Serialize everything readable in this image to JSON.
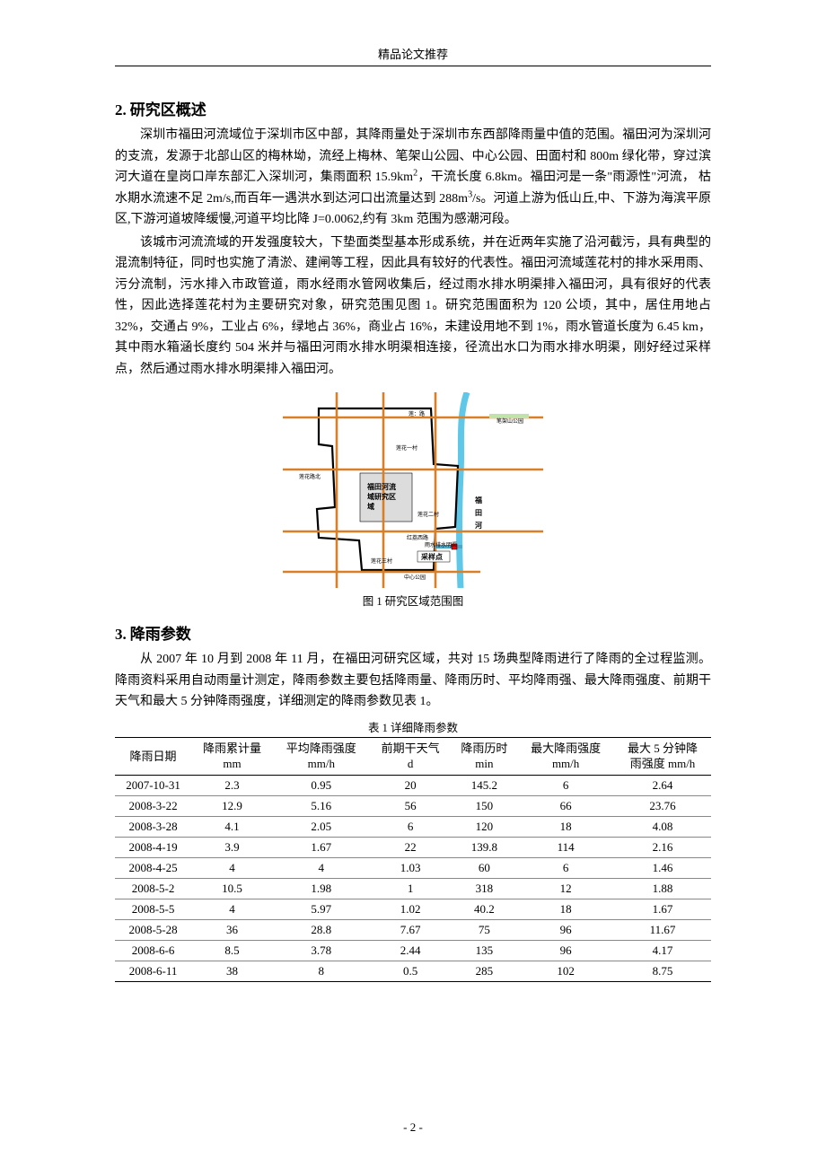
{
  "header": "精品论文推荐",
  "section2": {
    "num": "2.",
    "title": "研究区概述"
  },
  "para1a": "深圳市福田河流域位于深圳市区中部，其降雨量处于深圳市东西部降雨量中值的范围。",
  "para1b": "福田河为深圳河的支流，发源于北部山区的梅林坳，流经上梅林、笔架山公园、中心公园、田面村和 800m 绿化带，穿过滨河大道在皇岗口岸东部汇入深圳河，集雨面积 15.9km",
  "para1c": "，干流长度 6.8km。福田河是一条\"雨源性\"河流， 枯水期水流速不足 2m/s,而百年一遇洪水到达河口出流量达到 288m",
  "para1d": "/s。河道上游为低山丘,中、下游为海滨平原区,下游河道坡降缓慢,河道平均比降 J=0.0062,约有 3km 范围为感潮河段。",
  "para2": "该城市河流流域的开发强度较大，下垫面类型基本形成系统，并在近两年实施了沿河截污，具有典型的混流制特征，同时也实施了清淤、建闸等工程，因此具有较好的代表性。福田河流域莲花村的排水采用雨、污分流制，污水排入市政管道，雨水经雨水管网收集后，经过雨水排水明渠排入福田河，具有很好的代表性，因此选择莲花村为主要研究对象，研究范围见图 1。研究范围面积为 120 公顷，其中，居住用地占 32%，交通占 9%，工业占 6%，绿地占 36%，商业占 16%，未建设用地不到 1%，雨水管道长度为 6.45 km，其中雨水箱涵长度约 504 米并与福田河雨水排水明渠相连接，径流出水口为雨水排水明渠，刚好经过采样点，然后通过雨水排水明渠排入福田河。",
  "figure1_caption": "图 1  研究区域范围图",
  "section3": {
    "num": "3.",
    "title": "降雨参数"
  },
  "para3": "从 2007 年 10 月到 2008 年 11 月，在福田河研究区域，共对 15 场典型降雨进行了降雨的全过程监测。降雨资料采用自动雨量计测定，降雨参数主要包括降雨量、降雨历时、平均降雨强、最大降雨强度、前期干天气和最大 5 分钟降雨强度，详细测定的降雨参数见表 1。",
  "table1_caption": "表 1  详细降雨参数",
  "table1": {
    "columns": [
      {
        "line1": "降雨日期",
        "line2": ""
      },
      {
        "line1": "降雨累计量",
        "line2": "mm"
      },
      {
        "line1": "平均降雨强度",
        "line2": "mm/h"
      },
      {
        "line1": "前期干天气",
        "line2": "d"
      },
      {
        "line1": "降雨历时",
        "line2": "min"
      },
      {
        "line1": "最大降雨强度",
        "line2": "mm/h"
      },
      {
        "line1": "最大 5 分钟降",
        "line2": "雨强度 mm/h"
      }
    ],
    "rows": [
      [
        "2007-10-31",
        "2.3",
        "0.95",
        "20",
        "145.2",
        "6",
        "2.64"
      ],
      [
        "2008-3-22",
        "12.9",
        "5.16",
        "56",
        "150",
        "66",
        "23.76"
      ],
      [
        "2008-3-28",
        "4.1",
        "2.05",
        "6",
        "120",
        "18",
        "4.08"
      ],
      [
        "2008-4-19",
        "3.9",
        "1.67",
        "22",
        "139.8",
        "114",
        "2.16"
      ],
      [
        "2008-4-25",
        "4",
        "4",
        "1.03",
        "60",
        "6",
        "1.46"
      ],
      [
        "2008-5-2",
        "10.5",
        "1.98",
        "1",
        "318",
        "12",
        "1.88"
      ],
      [
        "2008-5-5",
        "4",
        "5.97",
        "1.02",
        "40.2",
        "18",
        "1.67"
      ],
      [
        "2008-5-28",
        "36",
        "28.8",
        "7.67",
        "75",
        "96",
        "11.67"
      ],
      [
        "2008-6-6",
        "8.5",
        "3.78",
        "2.44",
        "135",
        "96",
        "4.17"
      ],
      [
        "2008-6-11",
        "38",
        "8",
        "0.5",
        "285",
        "102",
        "8.75"
      ]
    ]
  },
  "map": {
    "colors": {
      "boundary": "#000000",
      "roads": "#d97f27",
      "river": "#5fc8e8",
      "riverfill": "#b8e8f4",
      "shade": "#dcdcdc",
      "park": "#bfe3a8",
      "label": "#000000",
      "white": "#ffffff",
      "labelbox": "#ffffff"
    },
    "labels": {
      "park_right": "笔架山公园",
      "region1": "福田河流",
      "region2": "域研究区",
      "region3": "域",
      "river1": "福",
      "river2": "田",
      "river3": "河",
      "sample": "采样点",
      "road_top": "莲：路",
      "road_left": "莲花路北",
      "road_r1": "莲花一村",
      "road_r2": "莲花二村",
      "road_r3": "红荔西路",
      "drain": "雨水排水明渠",
      "center": "中心公园",
      "r4": "莲花三村"
    }
  },
  "page_number": "- 2 -"
}
